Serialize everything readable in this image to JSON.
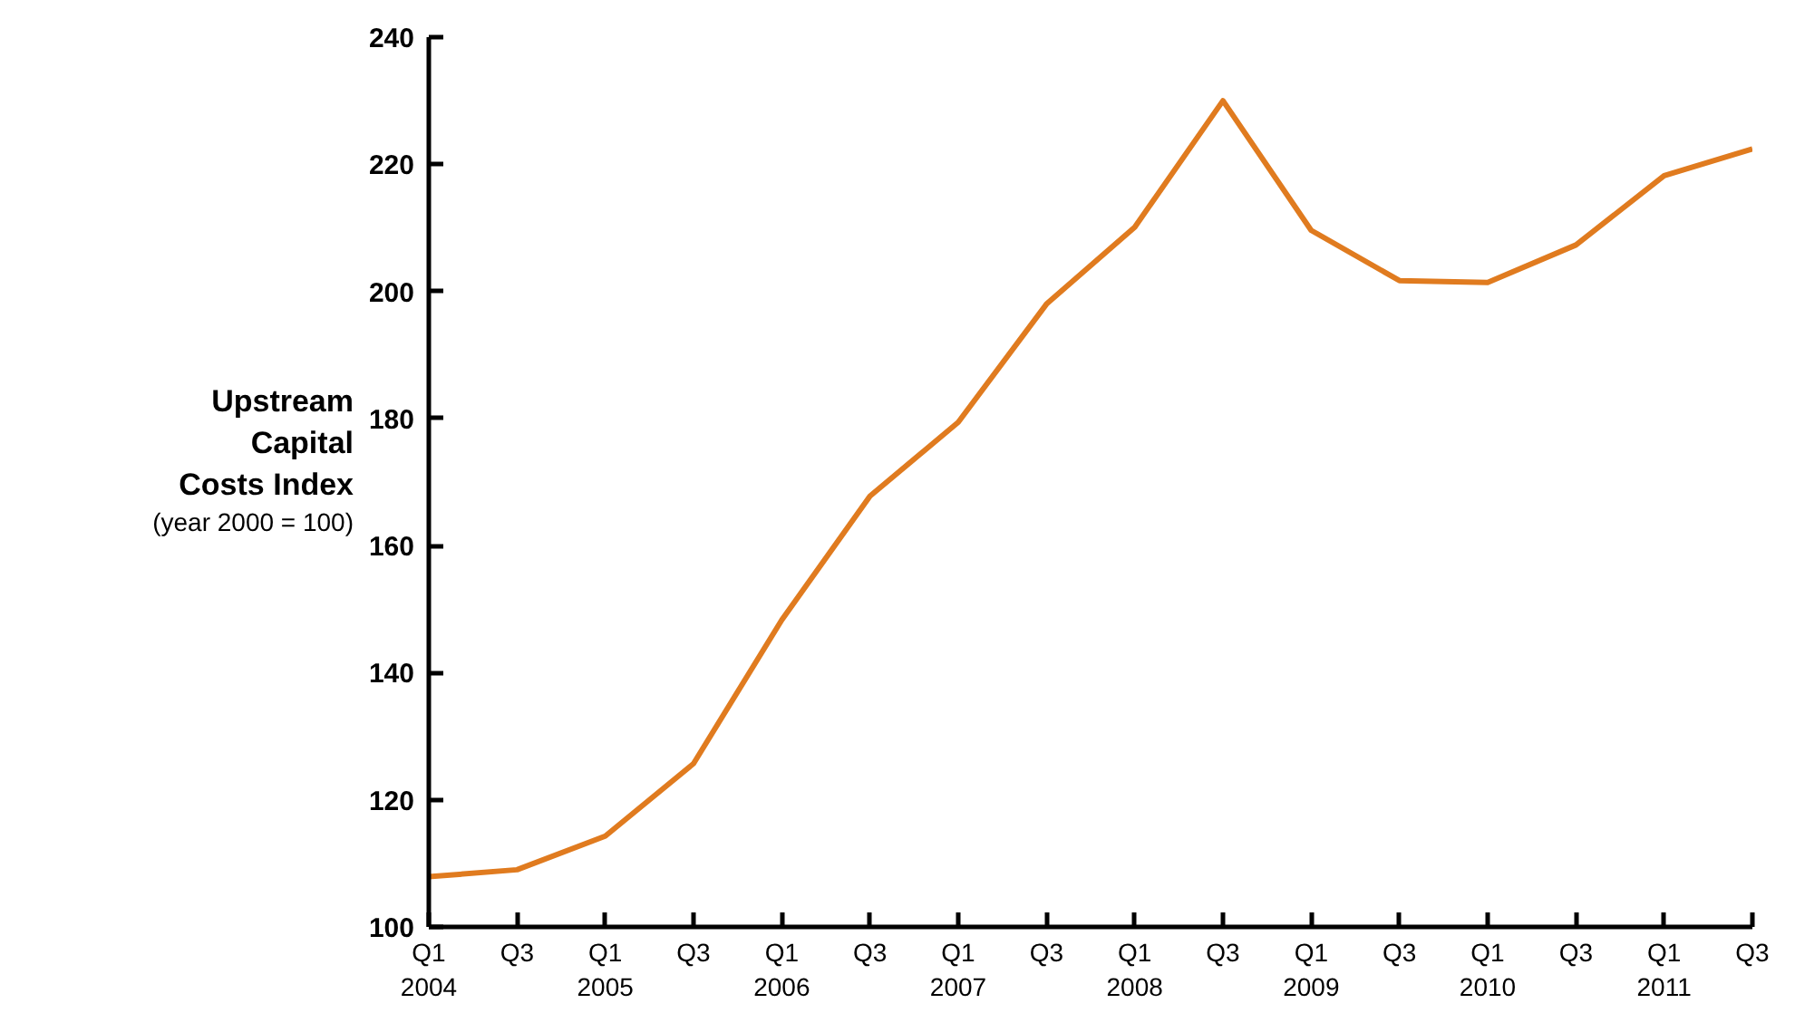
{
  "chart_data": {
    "type": "line",
    "ylabel": "Upstream Capital Costs Index",
    "annotations": [
      "(year 2000 = 100)"
    ],
    "categories": [
      "Q1\n2004",
      "Q3",
      "Q1\n2005",
      "Q3",
      "Q1\n2006",
      "Q3",
      "Q1\n2007",
      "Q3",
      "Q1\n2008",
      "Q3",
      "Q1\n2009",
      "Q3",
      "Q1\n2010",
      "Q3",
      "Q1\n2011",
      "Q3"
    ],
    "series": [
      {
        "color": "#e07b1f",
        "values": [
          107.9,
          109,
          114.3,
          125.7,
          148.3,
          167.8,
          179.4,
          198,
          210.1,
          230,
          209.6,
          201.7,
          201.4,
          207.3,
          218.2,
          222.4
        ]
      }
    ],
    "ylim": [
      100,
      240
    ],
    "yticks": [
      100,
      120,
      140,
      160,
      180,
      200,
      220,
      240
    ],
    "line_style": "solid"
  }
}
